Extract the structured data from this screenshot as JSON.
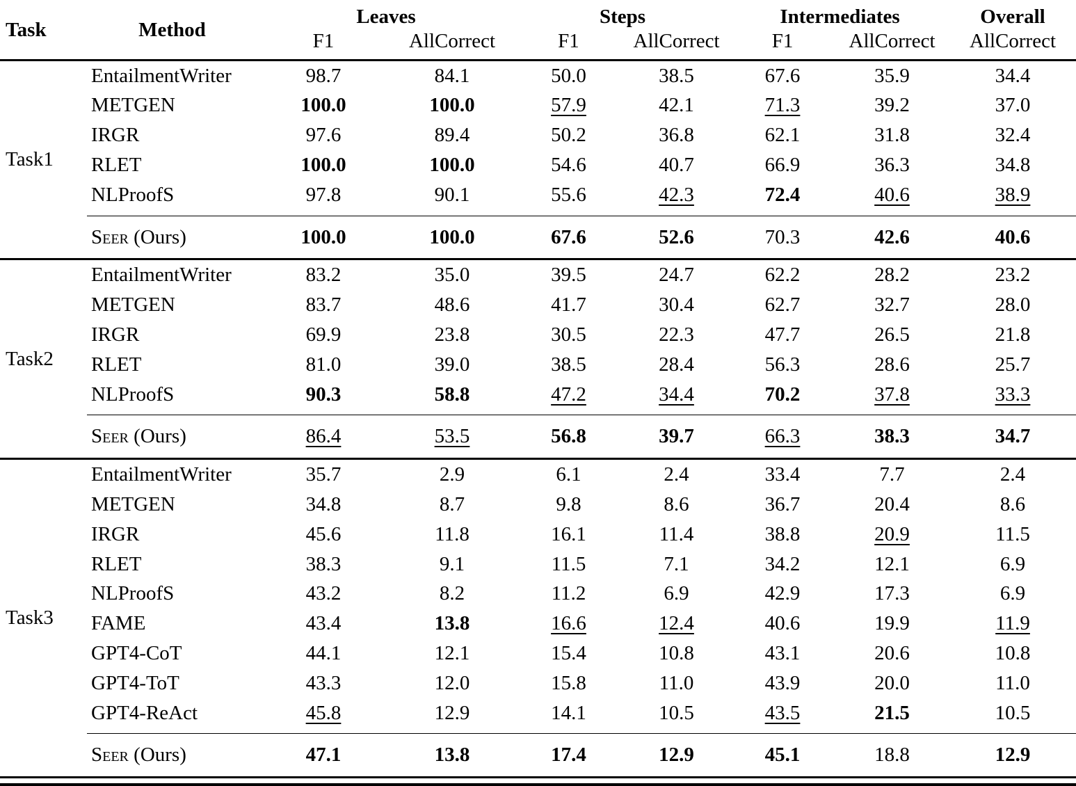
{
  "table": {
    "header": {
      "task": "Task",
      "method": "Method",
      "groups": [
        {
          "label": "Leaves",
          "subs": [
            "F1",
            "AllCorrect"
          ]
        },
        {
          "label": "Steps",
          "subs": [
            "F1",
            "AllCorrect"
          ]
        },
        {
          "label": "Intermediates",
          "subs": [
            "F1",
            "AllCorrect"
          ]
        },
        {
          "label": "Overall",
          "subs": [
            "AllCorrect"
          ]
        }
      ]
    },
    "tasks": [
      {
        "label": "Task1",
        "rows": [
          {
            "method": "EntailmentWriter",
            "cells": [
              [
                "98.7",
                ""
              ],
              [
                "84.1",
                ""
              ],
              [
                "50.0",
                ""
              ],
              [
                "38.5",
                ""
              ],
              [
                "67.6",
                ""
              ],
              [
                "35.9",
                ""
              ],
              [
                "34.4",
                ""
              ]
            ]
          },
          {
            "method": "METGEN",
            "cells": [
              [
                "100.0",
                "b"
              ],
              [
                "100.0",
                "b"
              ],
              [
                "57.9",
                "u"
              ],
              [
                "42.1",
                ""
              ],
              [
                "71.3",
                "u"
              ],
              [
                "39.2",
                ""
              ],
              [
                "37.0",
                ""
              ]
            ]
          },
          {
            "method": "IRGR",
            "cells": [
              [
                "97.6",
                ""
              ],
              [
                "89.4",
                ""
              ],
              [
                "50.2",
                ""
              ],
              [
                "36.8",
                ""
              ],
              [
                "62.1",
                ""
              ],
              [
                "31.8",
                ""
              ],
              [
                "32.4",
                ""
              ]
            ]
          },
          {
            "method": "RLET",
            "cells": [
              [
                "100.0",
                "b"
              ],
              [
                "100.0",
                "b"
              ],
              [
                "54.6",
                ""
              ],
              [
                "40.7",
                ""
              ],
              [
                "66.9",
                ""
              ],
              [
                "36.3",
                ""
              ],
              [
                "34.8",
                ""
              ]
            ]
          },
          {
            "method": "NLProofS",
            "cells": [
              [
                "97.8",
                ""
              ],
              [
                "90.1",
                ""
              ],
              [
                "55.6",
                ""
              ],
              [
                "42.3",
                "u"
              ],
              [
                "72.4",
                "b"
              ],
              [
                "40.6",
                "u"
              ],
              [
                "38.9",
                "u"
              ]
            ]
          },
          {
            "method": "Seer",
            "suffix": " (Ours)",
            "ours": true,
            "cells": [
              [
                "100.0",
                "b"
              ],
              [
                "100.0",
                "b"
              ],
              [
                "67.6",
                "b"
              ],
              [
                "52.6",
                "b"
              ],
              [
                "70.3",
                ""
              ],
              [
                "42.6",
                "b"
              ],
              [
                "40.6",
                "b"
              ]
            ]
          }
        ]
      },
      {
        "label": "Task2",
        "rows": [
          {
            "method": "EntailmentWriter",
            "cells": [
              [
                "83.2",
                ""
              ],
              [
                "35.0",
                ""
              ],
              [
                "39.5",
                ""
              ],
              [
                "24.7",
                ""
              ],
              [
                "62.2",
                ""
              ],
              [
                "28.2",
                ""
              ],
              [
                "23.2",
                ""
              ]
            ]
          },
          {
            "method": "METGEN",
            "cells": [
              [
                "83.7",
                ""
              ],
              [
                "48.6",
                ""
              ],
              [
                "41.7",
                ""
              ],
              [
                "30.4",
                ""
              ],
              [
                "62.7",
                ""
              ],
              [
                "32.7",
                ""
              ],
              [
                "28.0",
                ""
              ]
            ]
          },
          {
            "method": "IRGR",
            "cells": [
              [
                "69.9",
                ""
              ],
              [
                "23.8",
                ""
              ],
              [
                "30.5",
                ""
              ],
              [
                "22.3",
                ""
              ],
              [
                "47.7",
                ""
              ],
              [
                "26.5",
                ""
              ],
              [
                "21.8",
                ""
              ]
            ]
          },
          {
            "method": "RLET",
            "cells": [
              [
                "81.0",
                ""
              ],
              [
                "39.0",
                ""
              ],
              [
                "38.5",
                ""
              ],
              [
                "28.4",
                ""
              ],
              [
                "56.3",
                ""
              ],
              [
                "28.6",
                ""
              ],
              [
                "25.7",
                ""
              ]
            ]
          },
          {
            "method": "NLProofS",
            "cells": [
              [
                "90.3",
                "b"
              ],
              [
                "58.8",
                "b"
              ],
              [
                "47.2",
                "u"
              ],
              [
                "34.4",
                "u"
              ],
              [
                "70.2",
                "b"
              ],
              [
                "37.8",
                "u"
              ],
              [
                "33.3",
                "u"
              ]
            ]
          },
          {
            "method": "Seer",
            "suffix": " (Ours)",
            "ours": true,
            "cells": [
              [
                "86.4",
                "u"
              ],
              [
                "53.5",
                "u"
              ],
              [
                "56.8",
                "b"
              ],
              [
                "39.7",
                "b"
              ],
              [
                "66.3",
                "u"
              ],
              [
                "38.3",
                "b"
              ],
              [
                "34.7",
                "b"
              ]
            ]
          }
        ]
      },
      {
        "label": "Task3",
        "rows": [
          {
            "method": "EntailmentWriter",
            "cells": [
              [
                "35.7",
                ""
              ],
              [
                "2.9",
                ""
              ],
              [
                "6.1",
                ""
              ],
              [
                "2.4",
                ""
              ],
              [
                "33.4",
                ""
              ],
              [
                "7.7",
                ""
              ],
              [
                "2.4",
                ""
              ]
            ]
          },
          {
            "method": "METGEN",
            "cells": [
              [
                "34.8",
                ""
              ],
              [
                "8.7",
                ""
              ],
              [
                "9.8",
                ""
              ],
              [
                "8.6",
                ""
              ],
              [
                "36.7",
                ""
              ],
              [
                "20.4",
                ""
              ],
              [
                "8.6",
                ""
              ]
            ]
          },
          {
            "method": "IRGR",
            "cells": [
              [
                "45.6",
                ""
              ],
              [
                "11.8",
                ""
              ],
              [
                "16.1",
                ""
              ],
              [
                "11.4",
                ""
              ],
              [
                "38.8",
                ""
              ],
              [
                "20.9",
                "u"
              ],
              [
                "11.5",
                ""
              ]
            ]
          },
          {
            "method": "RLET",
            "cells": [
              [
                "38.3",
                ""
              ],
              [
                "9.1",
                ""
              ],
              [
                "11.5",
                ""
              ],
              [
                "7.1",
                ""
              ],
              [
                "34.2",
                ""
              ],
              [
                "12.1",
                ""
              ],
              [
                "6.9",
                ""
              ]
            ]
          },
          {
            "method": "NLProofS",
            "cells": [
              [
                "43.2",
                ""
              ],
              [
                "8.2",
                ""
              ],
              [
                "11.2",
                ""
              ],
              [
                "6.9",
                ""
              ],
              [
                "42.9",
                ""
              ],
              [
                "17.3",
                ""
              ],
              [
                "6.9",
                ""
              ]
            ]
          },
          {
            "method": "FAME",
            "cells": [
              [
                "43.4",
                ""
              ],
              [
                "13.8",
                "b"
              ],
              [
                "16.6",
                "u"
              ],
              [
                "12.4",
                "u"
              ],
              [
                "40.6",
                ""
              ],
              [
                "19.9",
                ""
              ],
              [
                "11.9",
                "u"
              ]
            ]
          },
          {
            "method": "GPT4-CoT",
            "cells": [
              [
                "44.1",
                ""
              ],
              [
                "12.1",
                ""
              ],
              [
                "15.4",
                ""
              ],
              [
                "10.8",
                ""
              ],
              [
                "43.1",
                ""
              ],
              [
                "20.6",
                ""
              ],
              [
                "10.8",
                ""
              ]
            ]
          },
          {
            "method": "GPT4-ToT",
            "cells": [
              [
                "43.3",
                ""
              ],
              [
                "12.0",
                ""
              ],
              [
                "15.8",
                ""
              ],
              [
                "11.0",
                ""
              ],
              [
                "43.9",
                ""
              ],
              [
                "20.0",
                ""
              ],
              [
                "11.0",
                ""
              ]
            ]
          },
          {
            "method": "GPT4-ReAct",
            "cells": [
              [
                "45.8",
                "u"
              ],
              [
                "12.9",
                ""
              ],
              [
                "14.1",
                ""
              ],
              [
                "10.5",
                ""
              ],
              [
                "43.5",
                "u"
              ],
              [
                "21.5",
                "b"
              ],
              [
                "10.5",
                ""
              ]
            ]
          },
          {
            "method": "Seer",
            "suffix": " (Ours)",
            "ours": true,
            "cells": [
              [
                "47.1",
                "b"
              ],
              [
                "13.8",
                "b"
              ],
              [
                "17.4",
                "b"
              ],
              [
                "12.9",
                "b"
              ],
              [
                "45.1",
                "b"
              ],
              [
                "18.8",
                ""
              ],
              [
                "12.9",
                "b"
              ]
            ]
          }
        ]
      }
    ]
  }
}
